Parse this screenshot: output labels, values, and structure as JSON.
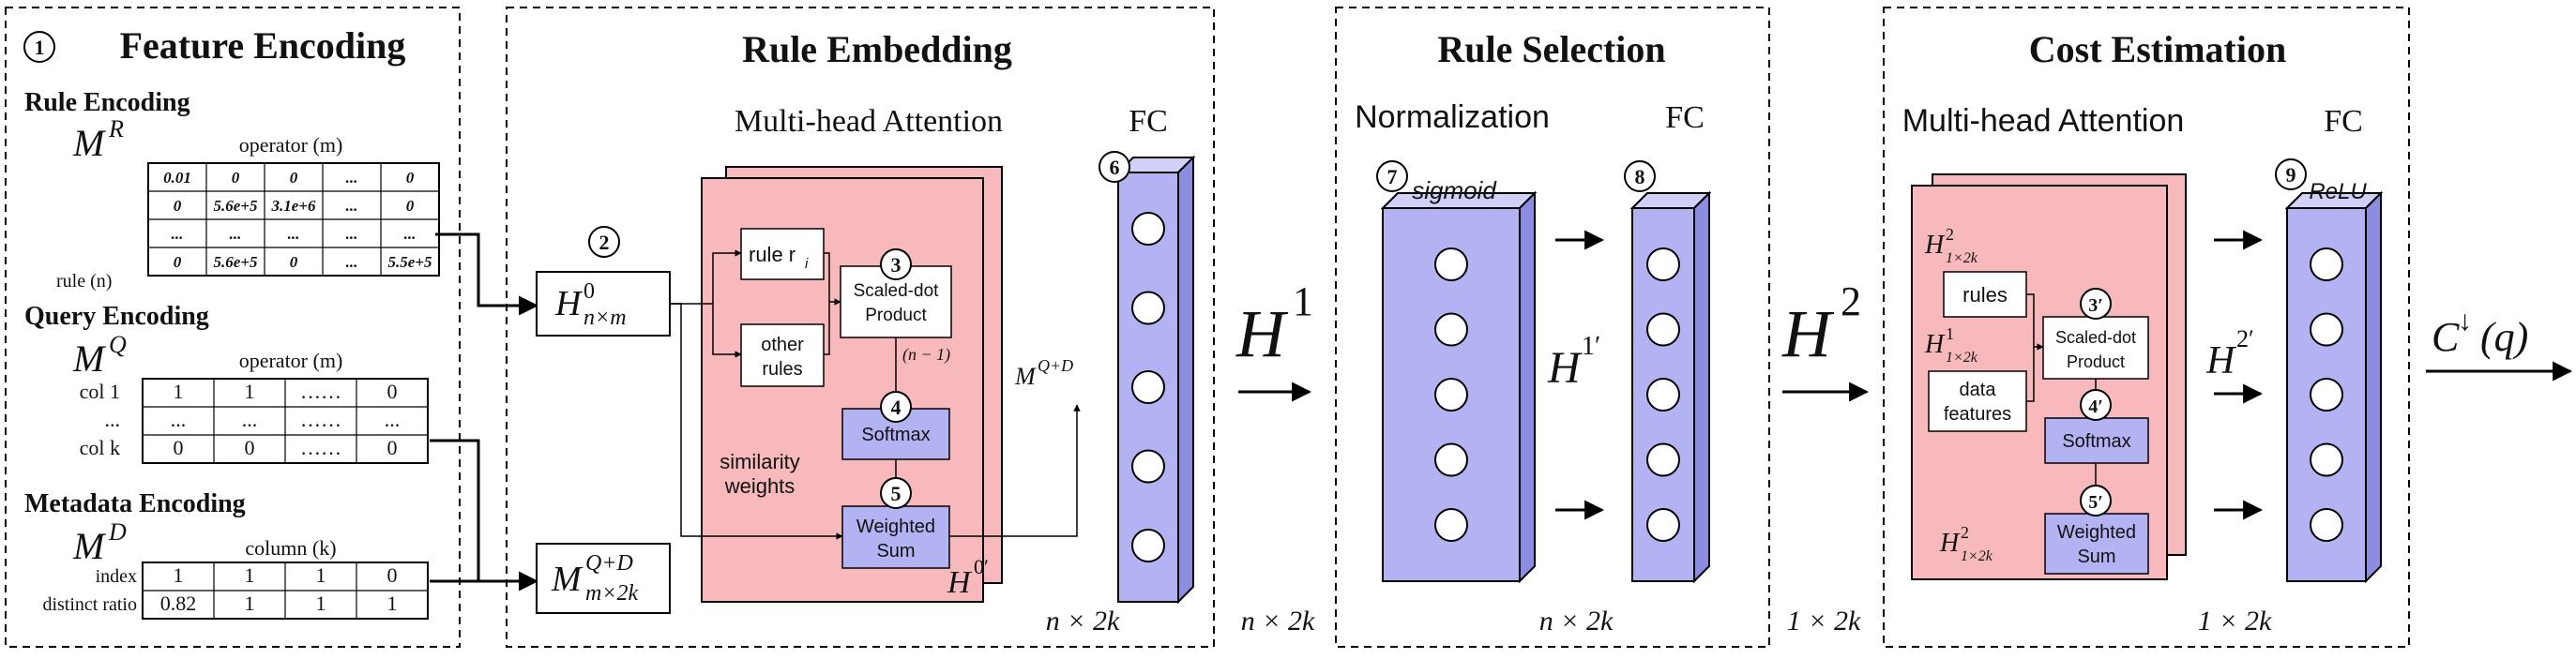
{
  "panels": {
    "feature_encoding": {
      "number": "1",
      "title": "Feature Encoding",
      "rule": {
        "heading": "Rule Encoding",
        "matrix_label": "M",
        "matrix_sup": "R",
        "col_label": "operator (m)",
        "row_label": "rule (n)",
        "cells": [
          [
            "0.01",
            "0",
            "0",
            "...",
            "0"
          ],
          [
            "0",
            "5.6e+5",
            "3.1e+6",
            "...",
            "0"
          ],
          [
            "...",
            "...",
            "...",
            "...",
            "..."
          ],
          [
            "0",
            "5.6e+5",
            "0",
            "...",
            "5.5e+5"
          ]
        ]
      },
      "query": {
        "heading": "Query Encoding",
        "matrix_label": "M",
        "matrix_sup": "Q",
        "col_label": "operator (m)",
        "row_labels": [
          "col 1",
          "...",
          "col k"
        ],
        "cells": [
          [
            "1",
            "1",
            "……",
            "0"
          ],
          [
            "...",
            "...",
            "……",
            "..."
          ],
          [
            "0",
            "0",
            "……",
            "0"
          ]
        ]
      },
      "metadata": {
        "heading": "Metadata Encoding",
        "matrix_label": "M",
        "matrix_sup": "D",
        "col_label": "column (k)",
        "row_labels": [
          "index",
          "distinct ratio"
        ],
        "cells": [
          [
            "1",
            "1",
            "1",
            "0"
          ],
          [
            "0.82",
            "1",
            "1",
            "1"
          ]
        ]
      }
    },
    "rule_embedding": {
      "title": "Rule Embedding",
      "mha_label": "Multi-head Attention",
      "fc_label": "FC",
      "num_h0": "2",
      "h0_base": "H",
      "h0_sup": "0",
      "h0_sub": "n×m",
      "mqd_base": "M",
      "mqd_sup": "Q+D",
      "mqd_sub": "m×2k",
      "rule_ri": "rule r",
      "rule_ri_sub": "i",
      "other_rules_line1": "other",
      "other_rules_line2": "rules",
      "num_scaled": "3",
      "scaled_line1": "Scaled-dot",
      "scaled_line2": "Product",
      "n_minus_1": "(n − 1)",
      "num_softmax": "4",
      "softmax": "Softmax",
      "similarity_line1": "similarity",
      "similarity_line2": "weights",
      "num_wsum": "5",
      "wsum_line1": "Weighted",
      "wsum_line2": "Sum",
      "mqd_arrow_base": "M",
      "mqd_arrow_sup": "Q+D",
      "h0prime_base": "H",
      "h0prime_sup": "0′",
      "num_fc": "6",
      "dim": "n × 2k"
    },
    "between_1": {
      "h_base": "H",
      "h_sup": "1",
      "dim": "n × 2k"
    },
    "rule_selection": {
      "title": "Rule Selection",
      "norm_label": "Normalization",
      "fc_label": "FC",
      "num_sigmoid": "7",
      "sigmoid": "sigmoid",
      "num_fc": "8",
      "h1prime_base": "H",
      "h1prime_sup": "1′",
      "dim": "n × 2k"
    },
    "between_2": {
      "h_base": "H",
      "h_sup": "2",
      "dim": "1 × 2k"
    },
    "cost_estimation": {
      "title": "Cost Estimation",
      "mha_label": "Multi-head Attention",
      "fc_label": "FC",
      "h2_top_base": "H",
      "h2_top_sup": "2",
      "h2_top_sub": "1×2k",
      "rules": "rules",
      "h1_base": "H",
      "h1_sup": "1",
      "h1_sub": "1×2k",
      "data_line1": "data",
      "data_line2": "features",
      "num_scaled": "3′",
      "scaled_line1": "Scaled-dot",
      "scaled_line2": "Product",
      "num_softmax": "4′",
      "softmax": "Softmax",
      "num_wsum": "5′",
      "wsum_line1": "Weighted",
      "wsum_line2": "Sum",
      "h2_bot_base": "H",
      "h2_bot_sup": "2",
      "h2_bot_sub": "1×2k",
      "num_fc": "9",
      "relu": "ReLU",
      "h2prime_base": "H",
      "h2prime_sup": "2′",
      "dim": "1 × 2k",
      "output_base": "C",
      "output_sup": "↓",
      "output_arg": "(q)"
    }
  },
  "colors": {
    "attention_fill": "#f7b9bb",
    "fc_fill": "#b3b3f3",
    "fc_side": "#8c8ce0",
    "fc_top": "#d0d0f8",
    "box_fill": "#b3b3f3"
  }
}
